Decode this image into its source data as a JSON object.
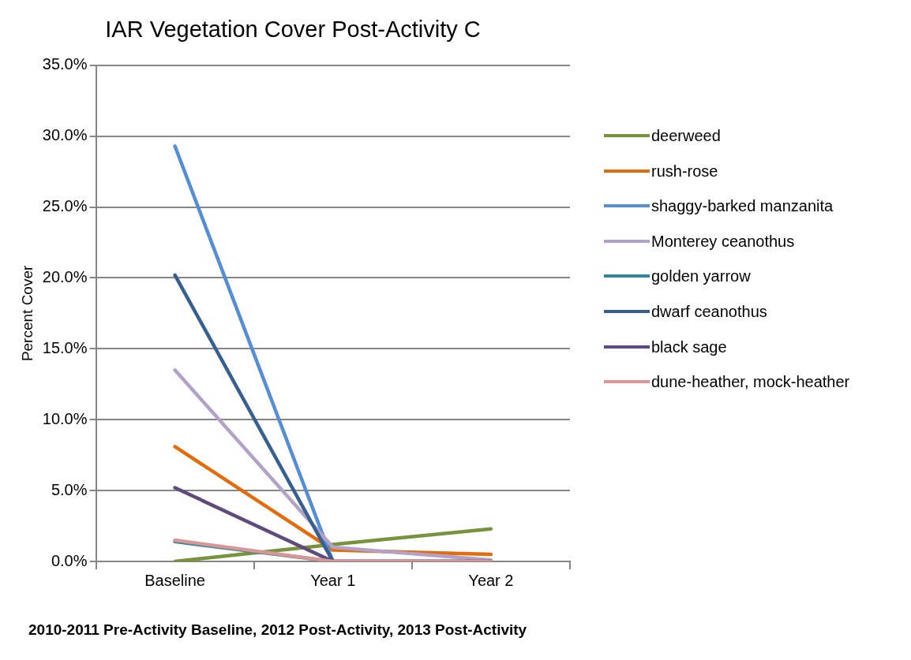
{
  "chart_data": {
    "type": "line",
    "title": "IAR Vegetation Cover Post-Activity C",
    "ylabel": "Percent Cover",
    "annotations": [
      "2010-2011 Pre-Activity Baseline, 2012 Post-Activity, 2013 Post-Activity"
    ],
    "categories": [
      "Baseline",
      "Year 1",
      "Year 2"
    ],
    "ylim": [
      0,
      35
    ],
    "yticks": [
      {
        "value": 0,
        "label": "0.0%"
      },
      {
        "value": 5,
        "label": "5.0%"
      },
      {
        "value": 10,
        "label": "10.0%"
      },
      {
        "value": 15,
        "label": "15.0%"
      },
      {
        "value": 20,
        "label": "20.0%"
      },
      {
        "value": 25,
        "label": "25.0%"
      },
      {
        "value": 30,
        "label": "30.0%"
      },
      {
        "value": 35,
        "label": "35.0%"
      }
    ],
    "grid": "y",
    "legend": "right",
    "marker": "none",
    "line_style": "solid",
    "series": [
      {
        "name": "deerweed",
        "color": "#77933c",
        "values": [
          0,
          1.2,
          2.3
        ]
      },
      {
        "name": "rush-rose",
        "color": "#e46c0a",
        "values": [
          8.1,
          0.8,
          0.5
        ]
      },
      {
        "name": "shaggy-barked manzanita",
        "color": "#558ed5",
        "values": [
          29.3,
          0,
          0
        ]
      },
      {
        "name": "Monterey ceanothus",
        "color": "#b3a2c7",
        "values": [
          13.5,
          1,
          0.1
        ]
      },
      {
        "name": "golden yarrow",
        "color": "#31859c",
        "values": [
          1.4,
          0,
          null
        ]
      },
      {
        "name": "dwarf ceanothus",
        "color": "#376092",
        "values": [
          20.2,
          0,
          0
        ]
      },
      {
        "name": "black sage",
        "color": "#604a7b",
        "values": [
          5.2,
          0,
          0
        ]
      },
      {
        "name": "dune-heather, mock-heather",
        "color": "#d99694",
        "values": [
          1.5,
          0,
          0
        ]
      }
    ]
  }
}
